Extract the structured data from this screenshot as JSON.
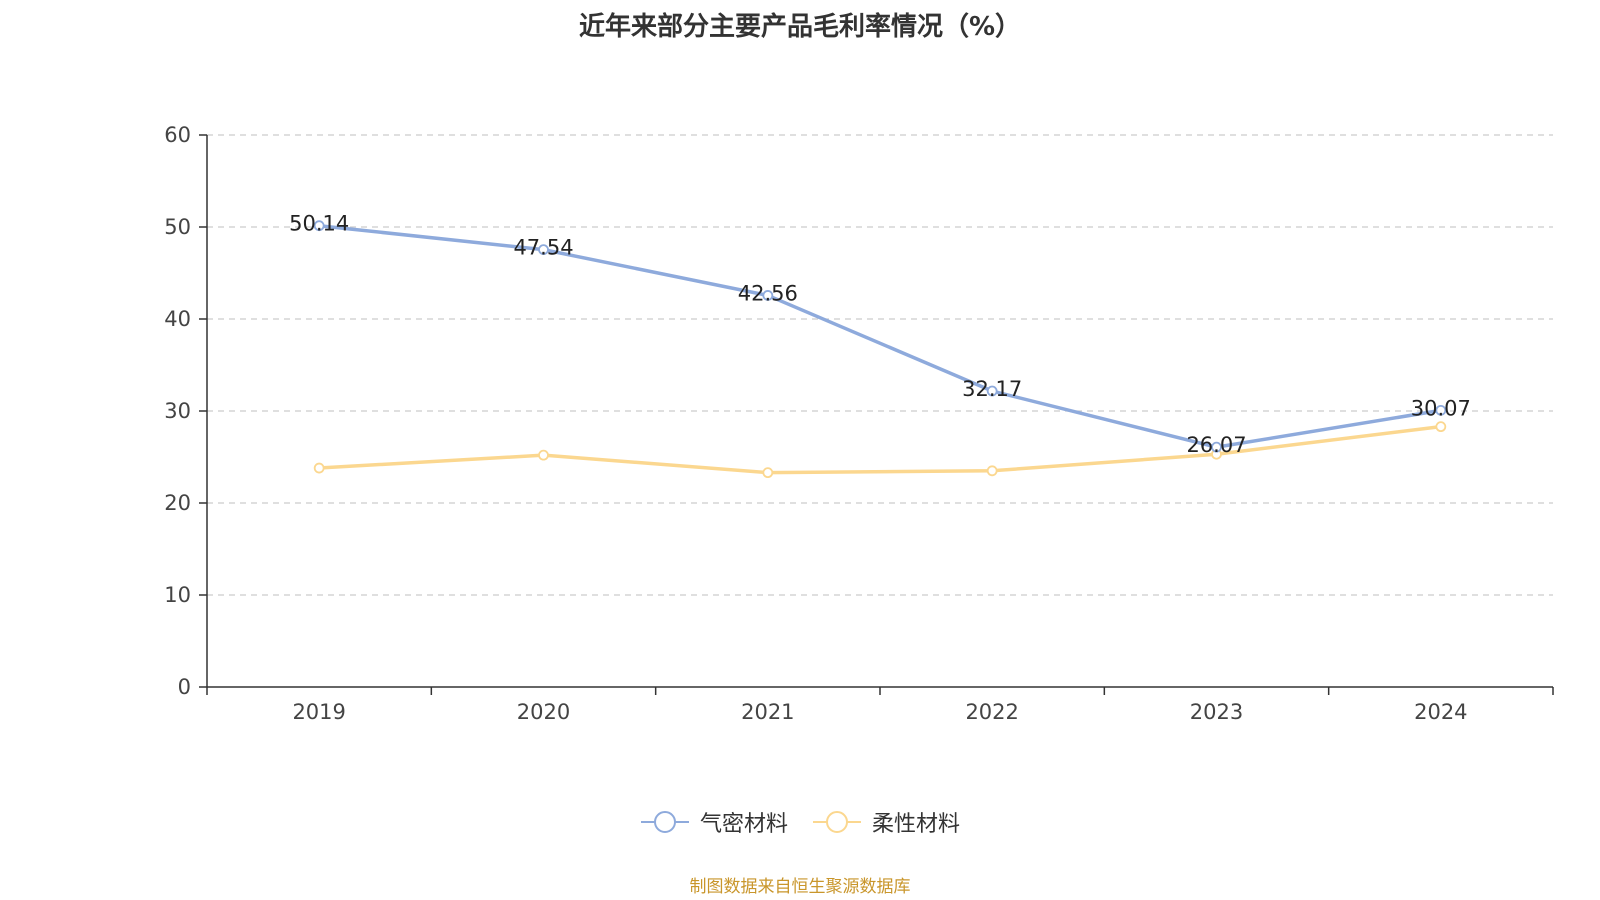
{
  "chart_data": {
    "type": "line",
    "title": "近年来部分主要产品毛利率情况（%）",
    "xlabel": "",
    "ylabel": "",
    "categories": [
      "2019",
      "2020",
      "2021",
      "2022",
      "2023",
      "2024"
    ],
    "ylim": [
      0,
      60
    ],
    "yticks": [
      0,
      10,
      20,
      30,
      40,
      50,
      60
    ],
    "grid": true,
    "legend_position": "bottom",
    "series": [
      {
        "name": "气密材料",
        "color": "#8eaadc",
        "values": [
          50.14,
          47.54,
          42.56,
          32.17,
          26.07,
          30.07
        ],
        "labels": [
          "50.14",
          "47.54",
          "42.56",
          "32.17",
          "26.07",
          "30.07"
        ]
      },
      {
        "name": "柔性材料",
        "color": "#fbd78f",
        "values": [
          23.8,
          25.2,
          23.3,
          23.5,
          25.3,
          28.3
        ],
        "labels": []
      }
    ]
  },
  "source_text": "制图数据来自恒生聚源数据库"
}
